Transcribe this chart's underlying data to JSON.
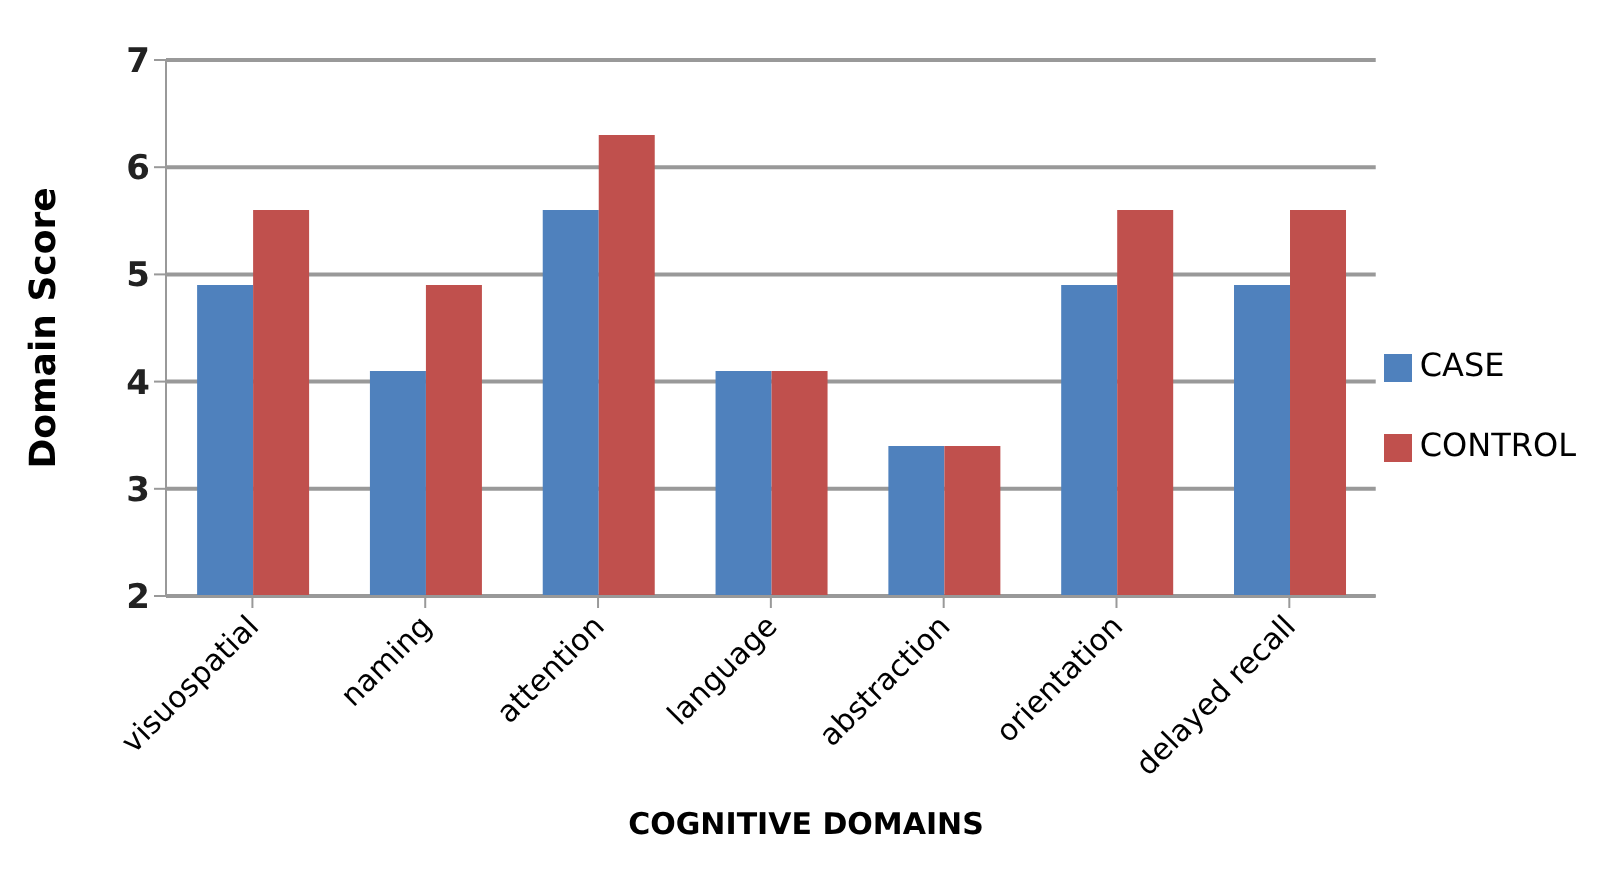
{
  "chart_data": {
    "type": "bar",
    "xlabel": "COGNITIVE DOMAINS",
    "ylabel": "Domain Score",
    "categories": [
      "visuospatial",
      "naming",
      "attention",
      "language",
      "abstraction",
      "orientation",
      "delayed recall"
    ],
    "series": [
      {
        "name": "CASE",
        "color": "#4f81bd",
        "values": [
          4.9,
          4.1,
          5.6,
          4.1,
          3.4,
          4.9,
          4.9
        ]
      },
      {
        "name": "CONTROL",
        "color": "#c0504d",
        "values": [
          5.6,
          4.9,
          6.3,
          4.1,
          3.4,
          5.6,
          5.6
        ]
      }
    ],
    "ylim": [
      2,
      7
    ],
    "yticks": [
      2,
      3,
      4,
      5,
      6,
      7
    ],
    "grid": "y",
    "legend": "right"
  }
}
